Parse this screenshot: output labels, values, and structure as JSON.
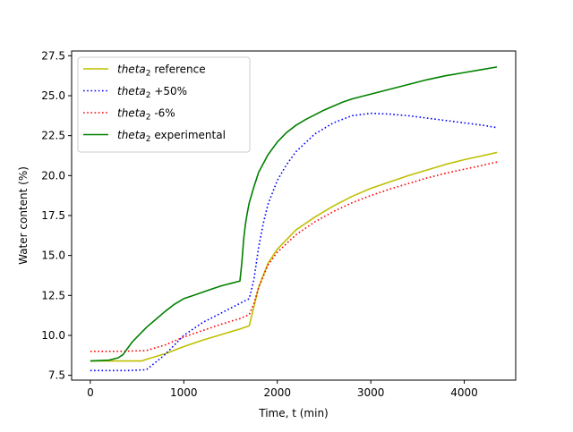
{
  "chart_data": {
    "type": "line",
    "title": "",
    "xlabel": "Time, t (min)",
    "ylabel": "Water content (%)",
    "xlim": [
      -200,
      4550
    ],
    "ylim": [
      7.2,
      27.8
    ],
    "xticks": [
      0,
      1000,
      2000,
      3000,
      4000
    ],
    "xtick_labels": [
      "0",
      "1000",
      "2000",
      "3000",
      "4000"
    ],
    "yticks": [
      7.5,
      10.0,
      12.5,
      15.0,
      17.5,
      20.0,
      22.5,
      25.0,
      27.5
    ],
    "ytick_labels": [
      "7.5",
      "10.0",
      "12.5",
      "15.0",
      "17.5",
      "20.0",
      "22.5",
      "25.0",
      "27.5"
    ],
    "grid": false,
    "legend_position": "upper-left",
    "series": [
      {
        "name_italic": "theta",
        "name_sub": "2",
        "name_rest": " reference",
        "color": "#bfbf00",
        "style": "solid",
        "x": [
          0,
          300,
          550,
          600,
          800,
          1000,
          1200,
          1400,
          1600,
          1700,
          1750,
          1800,
          1900,
          2000,
          2200,
          2400,
          2600,
          2800,
          3000,
          3200,
          3400,
          3600,
          3800,
          4000,
          4200,
          4350
        ],
        "y": [
          8.4,
          8.4,
          8.4,
          8.5,
          8.85,
          9.3,
          9.7,
          10.05,
          10.4,
          10.6,
          11.8,
          13.0,
          14.5,
          15.4,
          16.6,
          17.4,
          18.1,
          18.7,
          19.2,
          19.6,
          20.0,
          20.35,
          20.7,
          21.0,
          21.25,
          21.45
        ]
      },
      {
        "name_italic": "theta",
        "name_sub": "2",
        "name_rest": " +50%",
        "color": "#0000ff",
        "style": "dotted",
        "x": [
          0,
          200,
          400,
          600,
          800,
          1000,
          1200,
          1400,
          1600,
          1700,
          1750,
          1800,
          1850,
          1900,
          2000,
          2100,
          2200,
          2400,
          2600,
          2800,
          3000,
          3200,
          3400,
          3600,
          3800,
          4000,
          4200,
          4350
        ],
        "y": [
          7.8,
          7.8,
          7.8,
          7.85,
          8.8,
          10.0,
          10.8,
          11.4,
          12.0,
          12.3,
          13.5,
          15.5,
          17.0,
          18.2,
          19.7,
          20.7,
          21.5,
          22.6,
          23.3,
          23.75,
          23.9,
          23.85,
          23.75,
          23.6,
          23.45,
          23.3,
          23.15,
          23.0
        ]
      },
      {
        "name_italic": "theta",
        "name_sub": "2",
        "name_rest": " -6%",
        "color": "#ff0000",
        "style": "dotted",
        "x": [
          0,
          300,
          600,
          800,
          1000,
          1200,
          1400,
          1600,
          1700,
          1750,
          1800,
          1900,
          2000,
          2200,
          2400,
          2600,
          2800,
          3000,
          3200,
          3400,
          3600,
          3800,
          4000,
          4200,
          4350
        ],
        "y": [
          9.0,
          9.0,
          9.05,
          9.4,
          9.9,
          10.3,
          10.7,
          11.05,
          11.3,
          12.0,
          13.0,
          14.4,
          15.2,
          16.3,
          17.1,
          17.75,
          18.3,
          18.75,
          19.15,
          19.5,
          19.85,
          20.15,
          20.4,
          20.65,
          20.85
        ]
      },
      {
        "name_italic": "theta",
        "name_sub": "2",
        "name_rest": " experimental",
        "color": "#008000",
        "style": "solid",
        "x": [
          0,
          200,
          300,
          350,
          400,
          450,
          500,
          600,
          700,
          800,
          900,
          1000,
          1100,
          1200,
          1300,
          1400,
          1500,
          1600,
          1620,
          1640,
          1660,
          1680,
          1700,
          1750,
          1800,
          1900,
          2000,
          2100,
          2200,
          2300,
          2400,
          2500,
          2600,
          2700,
          2800,
          2900,
          3000,
          3200,
          3400,
          3600,
          3800,
          4000,
          4200,
          4350
        ],
        "y": [
          8.4,
          8.45,
          8.6,
          8.8,
          9.2,
          9.6,
          9.9,
          10.5,
          11.0,
          11.5,
          11.95,
          12.3,
          12.5,
          12.7,
          12.9,
          13.1,
          13.25,
          13.4,
          14.5,
          16.0,
          17.0,
          17.7,
          18.3,
          19.3,
          20.2,
          21.3,
          22.1,
          22.7,
          23.15,
          23.5,
          23.8,
          24.1,
          24.35,
          24.6,
          24.8,
          24.95,
          25.1,
          25.4,
          25.7,
          26.0,
          26.25,
          26.45,
          26.65,
          26.8
        ]
      }
    ]
  }
}
